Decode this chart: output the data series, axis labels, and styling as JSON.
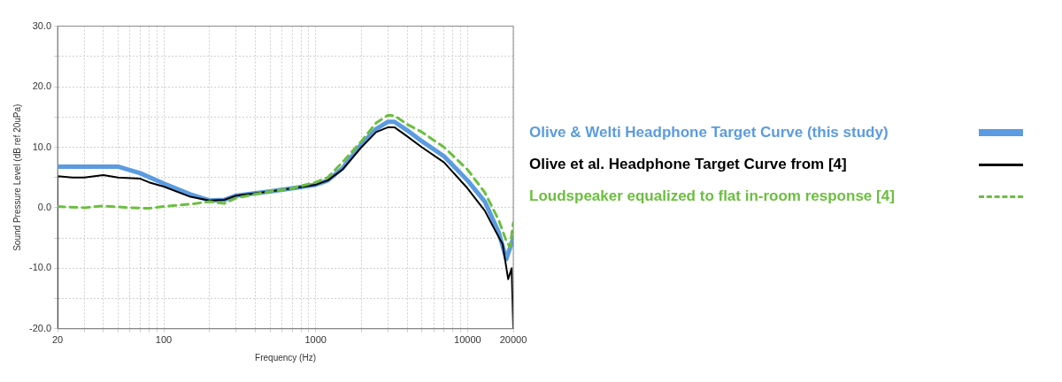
{
  "chart_data": {
    "type": "line",
    "xlabel": "Frequency (Hz)",
    "ylabel": "Sound Pressure Level (dB ref 20uPa)",
    "log": "x",
    "grid": true,
    "legend": "right",
    "xlim": [
      20,
      20000
    ],
    "ylim": [
      -20,
      30
    ],
    "xticks": [
      20,
      {
        "value": 30,
        "label": null
      },
      {
        "value": 40,
        "label": null
      },
      {
        "value": 50,
        "label": null
      },
      {
        "value": 60,
        "label": null
      },
      {
        "value": 70,
        "label": null
      },
      {
        "value": 80,
        "label": null
      },
      {
        "value": 90,
        "label": null
      },
      100,
      {
        "value": 200,
        "label": null
      },
      {
        "value": 300,
        "label": null
      },
      {
        "value": 400,
        "label": null
      },
      {
        "value": 500,
        "label": null
      },
      {
        "value": 600,
        "label": null
      },
      {
        "value": 700,
        "label": null
      },
      {
        "value": 800,
        "label": null
      },
      {
        "value": 900,
        "label": null
      },
      1000,
      {
        "value": 2000,
        "label": null
      },
      {
        "value": 3000,
        "label": null
      },
      {
        "value": 4000,
        "label": null
      },
      {
        "value": 5000,
        "label": null
      },
      {
        "value": 6000,
        "label": null
      },
      {
        "value": 7000,
        "label": null
      },
      {
        "value": 8000,
        "label": null
      },
      {
        "value": 9000,
        "label": null
      },
      10000,
      20000
    ],
    "yticks": [
      {
        "value": -20,
        "label": "-20.0"
      },
      {
        "value": -15,
        "label": null
      },
      {
        "value": -10,
        "label": "-10.0"
      },
      {
        "value": -5,
        "label": null
      },
      {
        "value": 0,
        "label": "0.0"
      },
      {
        "value": 5,
        "label": null
      },
      {
        "value": 10,
        "label": "10.0"
      },
      {
        "value": 15,
        "label": null
      },
      {
        "value": 20,
        "label": "20.0"
      },
      {
        "value": 25,
        "label": null
      },
      {
        "value": 30,
        "label": "30.0"
      }
    ],
    "series": [
      {
        "name": "Olive & Welti Headphone Target Curve (this study)",
        "color": "#5b9be0",
        "line_style": "solid",
        "x": [
          20,
          30,
          50,
          70,
          100,
          150,
          200,
          250,
          300,
          500,
          700,
          1000,
          1200,
          1500,
          2000,
          2500,
          3000,
          3300,
          4000,
          5000,
          7000,
          10000,
          13000,
          16000,
          18000,
          20000
        ],
        "values": [
          6.8,
          6.8,
          6.8,
          5.7,
          4.0,
          2.2,
          1.2,
          1.3,
          2.0,
          2.7,
          3.2,
          3.8,
          4.5,
          6.5,
          10.5,
          13,
          14.2,
          14.2,
          12.8,
          11,
          8.5,
          4.5,
          1,
          -4,
          -8.5,
          -5
        ]
      },
      {
        "name": "Olive et al. Headphone Target Curve from [4]",
        "color": "#000000",
        "line_style": "solid",
        "x": [
          20,
          20,
          25,
          30,
          40,
          50,
          70,
          80,
          100,
          150,
          200,
          250,
          300,
          500,
          700,
          1000,
          1200,
          1500,
          2000,
          2500,
          3000,
          3300,
          4000,
          5000,
          7000,
          10000,
          13000,
          15000,
          17000,
          18500,
          19500,
          20000
        ],
        "values": [
          -20,
          5.2,
          5.0,
          5.0,
          5.4,
          5.0,
          4.8,
          4.2,
          3.5,
          1.8,
          1.2,
          1.3,
          2.0,
          2.7,
          3.2,
          3.8,
          4.5,
          6.3,
          10,
          12.5,
          13.3,
          13.3,
          11.8,
          10,
          7.5,
          3.2,
          -0.5,
          -3.5,
          -6,
          -11.8,
          -10,
          -20
        ]
      },
      {
        "name": "Loudspeaker equalized to flat in-room response [4]",
        "color": "#6bbf3f",
        "line_style": "dashed",
        "x": [
          20,
          30,
          40,
          60,
          80,
          100,
          150,
          200,
          250,
          300,
          500,
          700,
          1000,
          1200,
          1500,
          2000,
          2500,
          3000,
          3300,
          4000,
          5000,
          7000,
          10000,
          13000,
          16000,
          18000,
          19000,
          20000
        ],
        "values": [
          0.2,
          0,
          0.3,
          0,
          -0.1,
          0.2,
          0.6,
          1.0,
          0.7,
          1.6,
          2.7,
          3.2,
          4.2,
          5,
          7.5,
          11,
          14,
          15.3,
          15.2,
          13.8,
          12.5,
          10,
          6.3,
          2.5,
          -2,
          -5.5,
          -6.5,
          -2.5
        ]
      }
    ]
  }
}
